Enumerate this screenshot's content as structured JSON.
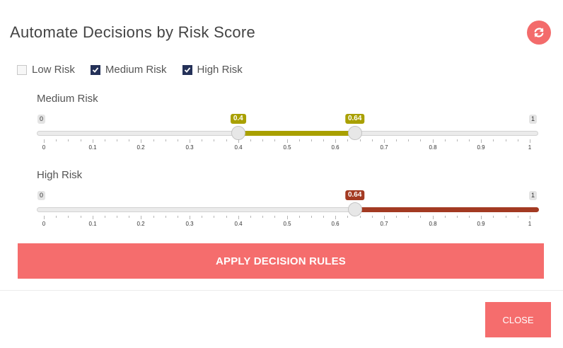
{
  "title": "Automate Decisions by Risk Score",
  "refresh_icon": "refresh-icon",
  "checkboxes": [
    {
      "label": "Low Risk",
      "checked": false
    },
    {
      "label": "Medium Risk",
      "checked": true
    },
    {
      "label": "High Risk",
      "checked": true
    }
  ],
  "sliders": [
    {
      "title": "Medium Risk",
      "min": 0,
      "max": 1,
      "from": 0.4,
      "to": 0.64,
      "from_label": "0.4",
      "to_label": "0.64",
      "min_label": "0",
      "max_label": "1",
      "color": "#a9a000"
    },
    {
      "title": "High Risk",
      "min": 0,
      "max": 1,
      "from": 0.64,
      "to": 1,
      "from_label": "0.64",
      "min_label": "0",
      "max_label": "1",
      "color": "#a33a22"
    }
  ],
  "ticks": [
    "0",
    "0.1",
    "0.2",
    "0.3",
    "0.4",
    "0.5",
    "0.6",
    "0.7",
    "0.8",
    "0.9",
    "1"
  ],
  "apply_label": "APPLY DECISION RULES",
  "close_label": "CLOSE"
}
